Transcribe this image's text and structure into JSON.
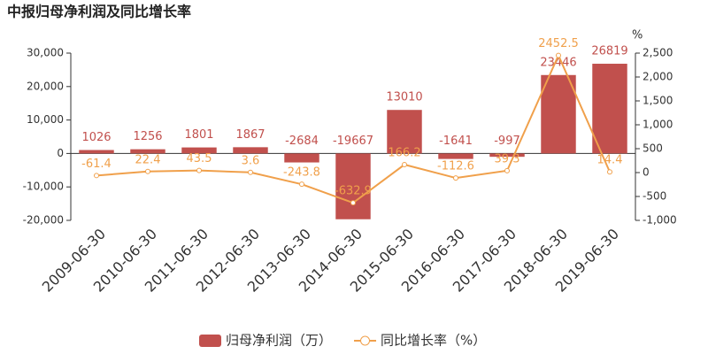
{
  "chart_data": {
    "type": "bar",
    "title": "中报归母净利润及同比增长率",
    "categories": [
      "2009-06-30",
      "2010-06-30",
      "2011-06-30",
      "2012-06-30",
      "2013-06-30",
      "2014-06-30",
      "2015-06-30",
      "2016-06-30",
      "2017-06-30",
      "2018-06-30",
      "2019-06-30"
    ],
    "series": [
      {
        "name": "归母净利润（万）",
        "type": "bar",
        "color": "#c1504d",
        "values": [
          1026,
          1256,
          1801,
          1867,
          -2684,
          -19667,
          13010,
          -1641,
          -997,
          23446,
          26819
        ]
      },
      {
        "name": "同比增长率（%）",
        "type": "line",
        "axis": "y2",
        "color": "#f0a04b",
        "values": [
          -61.4,
          22.4,
          43.5,
          3.6,
          -243.8,
          -632.9,
          166.2,
          -112.6,
          39.3,
          2452.5,
          14.4
        ]
      }
    ],
    "ylim": [
      -20000,
      30000
    ],
    "yticks": [
      {
        "value": -20000,
        "label": "-20,000"
      },
      {
        "value": -10000,
        "label": "-10,000"
      },
      0,
      {
        "value": 10000,
        "label": "10,000"
      },
      {
        "value": 20000,
        "label": "20,000"
      },
      {
        "value": 30000,
        "label": "30,000"
      }
    ],
    "y2label": "%",
    "y2lim": [
      -1000,
      2500
    ],
    "y2ticks": [
      {
        "value": -1000,
        "label": "-1,000"
      },
      -500,
      0,
      500,
      {
        "value": 1000,
        "label": "1,000"
      },
      {
        "value": 1500,
        "label": "1,500"
      },
      {
        "value": 2000,
        "label": "2,000"
      },
      {
        "value": 2500,
        "label": "2,500"
      }
    ]
  }
}
